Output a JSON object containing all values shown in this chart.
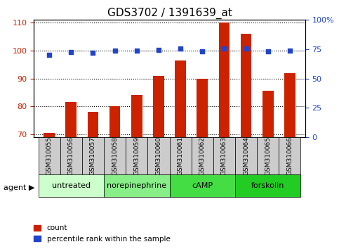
{
  "title": "GDS3702 / 1391639_at",
  "samples": [
    "GSM310055",
    "GSM310056",
    "GSM310057",
    "GSM310058",
    "GSM310059",
    "GSM310060",
    "GSM310061",
    "GSM310062",
    "GSM310063",
    "GSM310064",
    "GSM310065",
    "GSM310066"
  ],
  "counts": [
    70.5,
    81.5,
    78.0,
    80.0,
    84.0,
    91.0,
    96.5,
    90.0,
    110.0,
    106.0,
    85.5,
    92.0
  ],
  "percentiles": [
    70.0,
    72.5,
    72.0,
    73.5,
    73.5,
    74.5,
    75.5,
    73.0,
    75.5,
    75.5,
    73.0,
    74.0
  ],
  "bar_color": "#cc2200",
  "dot_color": "#2244cc",
  "ylim_left": [
    69,
    111
  ],
  "ylim_right": [
    0,
    100
  ],
  "yticks_left": [
    70,
    80,
    90,
    100,
    110
  ],
  "yticks_right": [
    0,
    25,
    50,
    75,
    100
  ],
  "groups": [
    {
      "label": "untreated",
      "start": 0,
      "end": 3,
      "color": "#ccffcc"
    },
    {
      "label": "norepinephrine",
      "start": 3,
      "end": 6,
      "color": "#88ee88"
    },
    {
      "label": "cAMP",
      "start": 6,
      "end": 9,
      "color": "#44dd44"
    },
    {
      "label": "forskolin",
      "start": 9,
      "end": 12,
      "color": "#22cc22"
    }
  ],
  "group_colors": [
    "#ccffcc",
    "#88ee88",
    "#44dd44",
    "#22cc22"
  ],
  "xlabel_agent": "agent",
  "legend_count": "count",
  "legend_percentile": "percentile rank within the sample",
  "title_fontsize": 11,
  "tick_fontsize": 8,
  "label_fontsize": 8,
  "sample_box_color": "#cccccc"
}
